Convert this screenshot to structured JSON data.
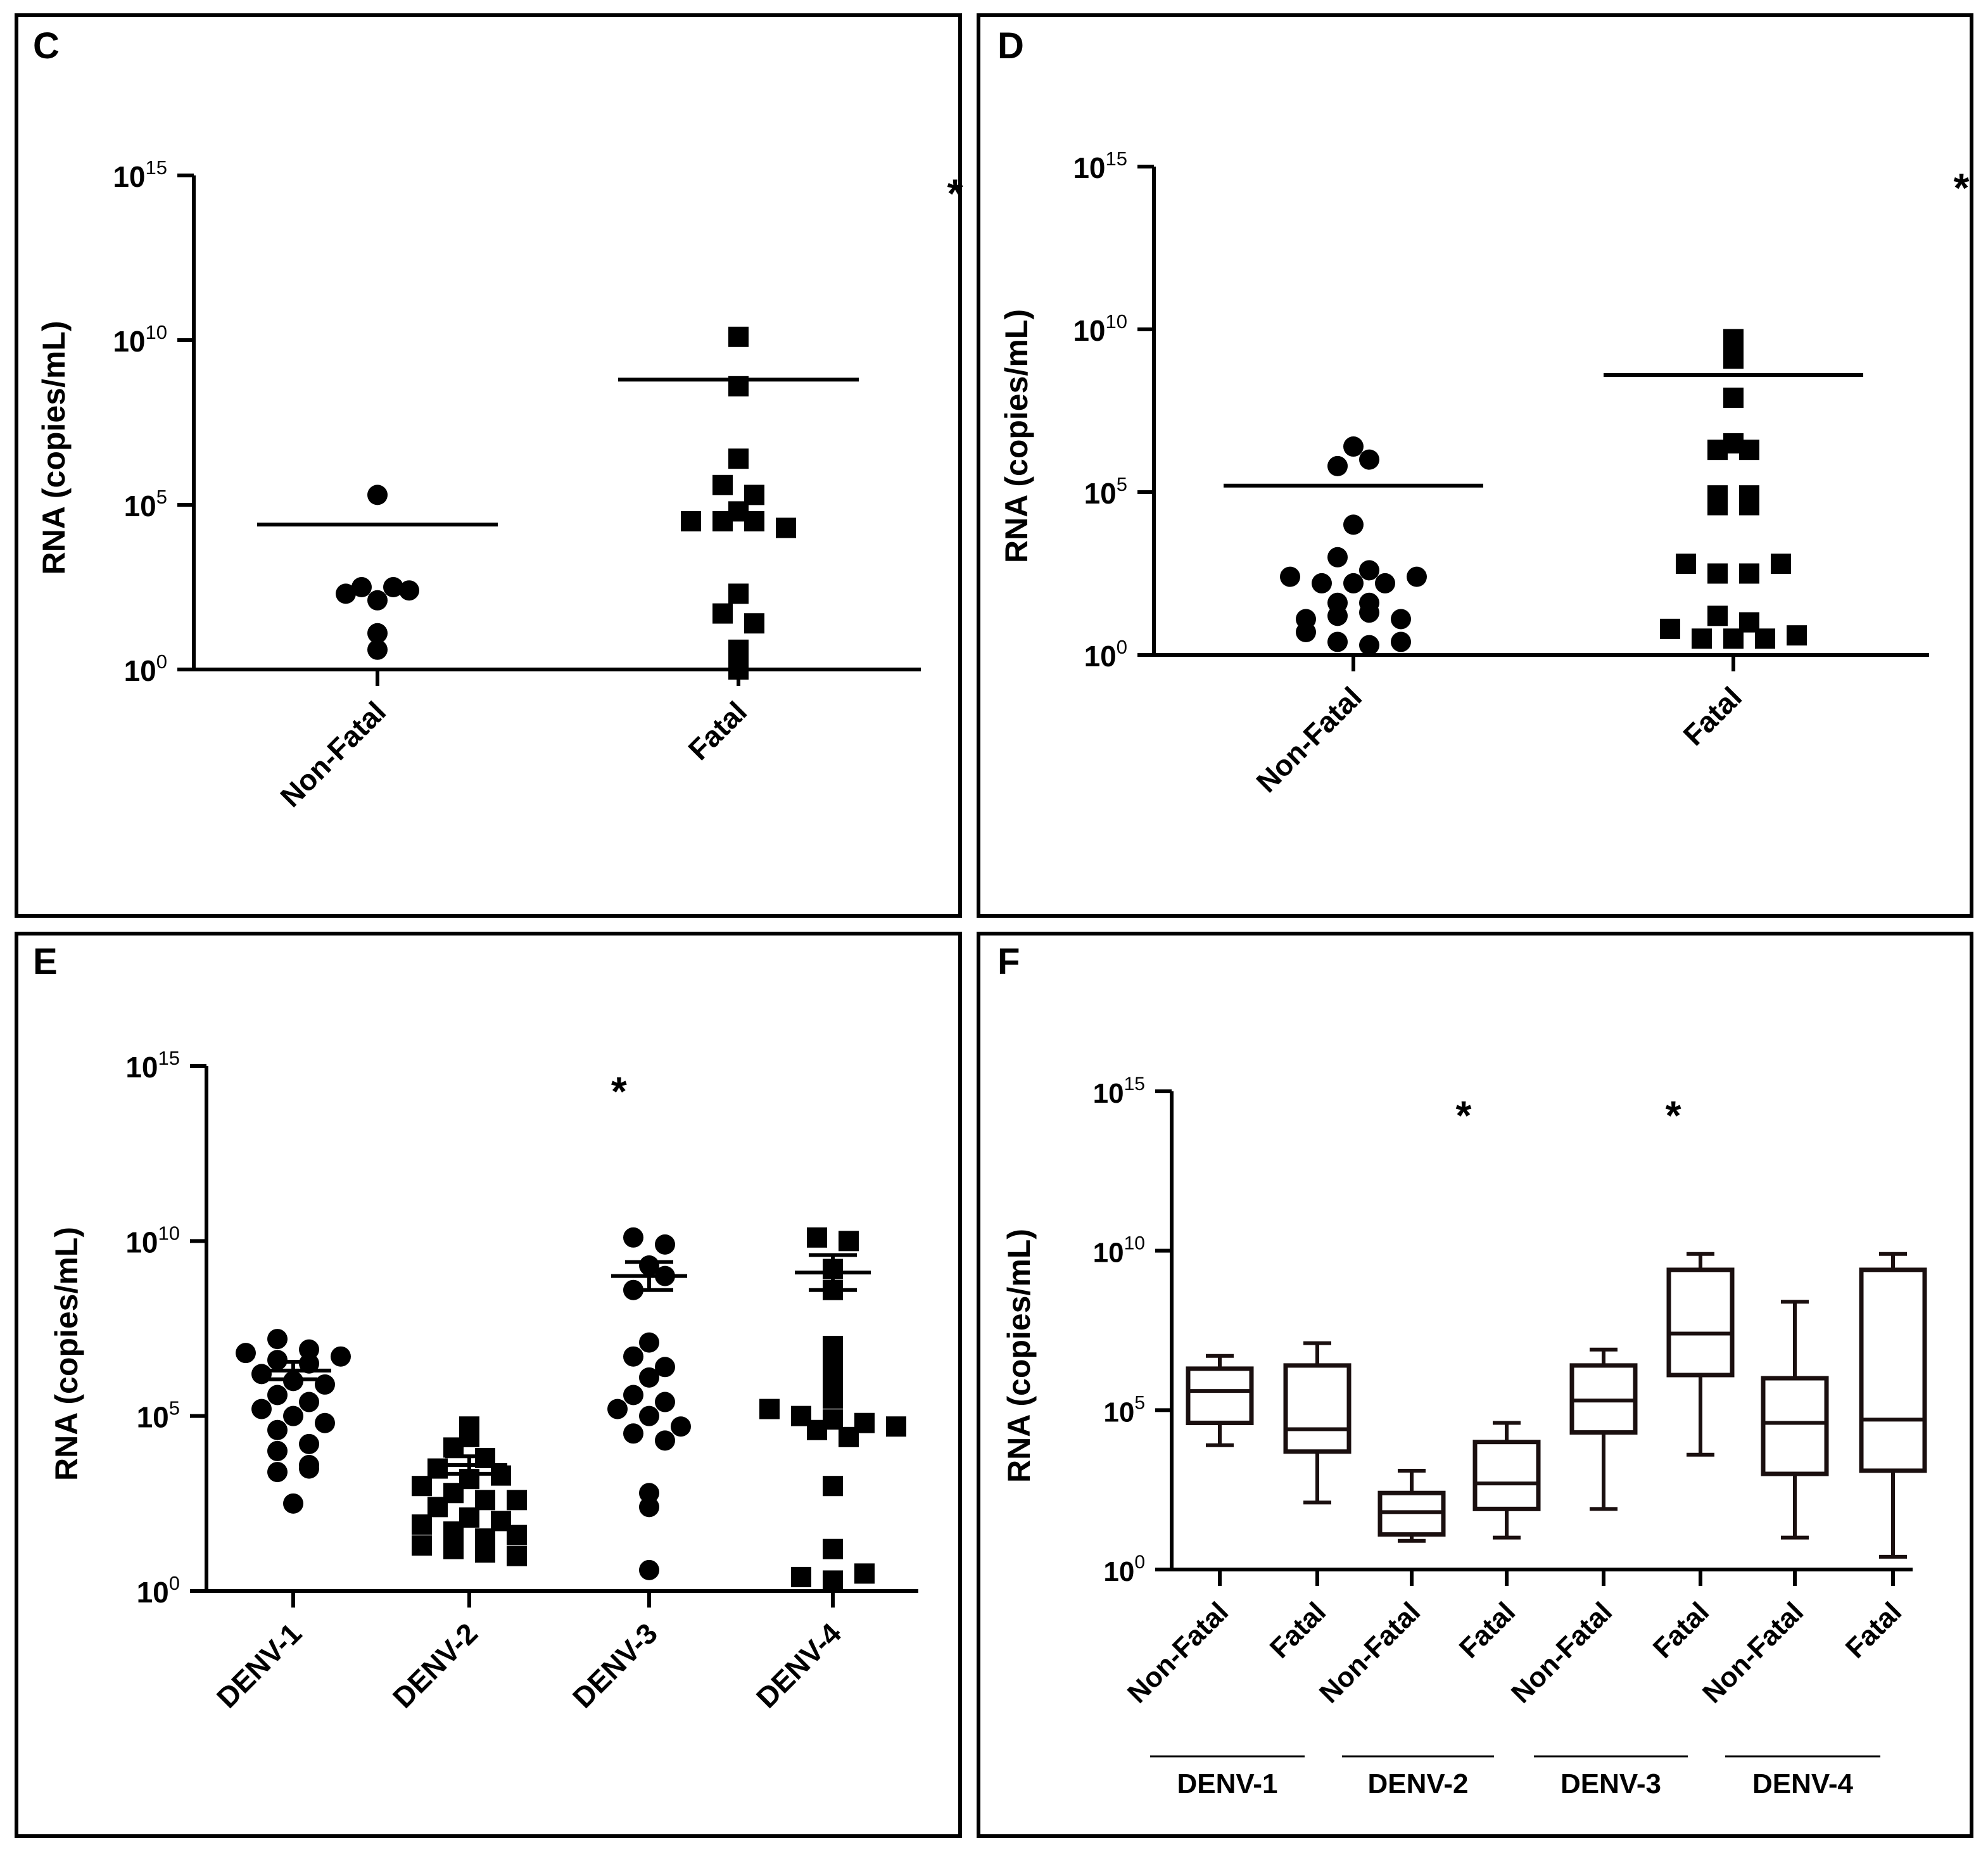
{
  "figure": {
    "panels": [
      "C",
      "D",
      "E",
      "F"
    ]
  },
  "chart_data": [
    {
      "panel": "C",
      "type": "scatter",
      "title": "",
      "ylabel": "RNA (copies/mL)",
      "yscale": "log10",
      "ylim_exponent": [
        0,
        15
      ],
      "yticks": [
        {
          "base": "10",
          "exp": "0",
          "value": 0
        },
        {
          "base": "10",
          "exp": "5",
          "value": 5
        },
        {
          "base": "10",
          "exp": "10",
          "value": 10
        },
        {
          "base": "10",
          "exp": "15",
          "value": 15
        }
      ],
      "categories": [
        "Non-Fatal",
        "Fatal"
      ],
      "annotations": [
        {
          "text": "*",
          "category_pos": 1.6,
          "y_exp": 14.8
        }
      ],
      "groups": [
        {
          "name": "Non-Fatal",
          "marker": "circle",
          "mean_log": 4.4,
          "points_log": [
            5.3,
            2.5,
            2.3,
            2.1,
            2.4,
            2.5,
            1.1,
            0.6
          ]
        },
        {
          "name": "Fatal",
          "marker": "square",
          "mean_log": 8.8,
          "points_log": [
            10.1,
            8.6,
            6.4,
            5.6,
            5.3,
            4.8,
            4.5,
            4.5,
            4.5,
            4.3,
            2.3,
            1.7,
            1.4,
            0.6,
            0.0
          ]
        }
      ]
    },
    {
      "panel": "D",
      "type": "scatter",
      "title": "",
      "ylabel": "RNA (copies/mL)",
      "yscale": "log10",
      "ylim_exponent": [
        0,
        15
      ],
      "yticks": [
        {
          "base": "10",
          "exp": "0",
          "value": 0
        },
        {
          "base": "10",
          "exp": "5",
          "value": 5
        },
        {
          "base": "10",
          "exp": "10",
          "value": 10
        },
        {
          "base": "10",
          "exp": "15",
          "value": 15
        }
      ],
      "categories": [
        "Non-Fatal",
        "Fatal"
      ],
      "annotations": [
        {
          "text": "*",
          "category_pos": 1.6,
          "y_exp": 14.7
        }
      ],
      "groups": [
        {
          "name": "Non-Fatal",
          "marker": "circle",
          "mean_log": 5.2,
          "points_log": [
            6.4,
            5.8,
            6.0,
            4.0,
            3.0,
            2.4,
            2.2,
            2.2,
            2.2,
            2.4,
            2.6,
            1.6,
            1.6,
            1.1,
            1.2,
            1.3,
            0.7,
            0.4,
            0.3,
            0.4,
            1.1
          ]
        },
        {
          "name": "Fatal",
          "marker": "square",
          "mean_log": 8.6,
          "points_log": [
            9.7,
            9.1,
            7.9,
            6.3,
            6.3,
            6.5,
            4.9,
            4.6,
            4.6,
            4.9,
            2.8,
            2.5,
            2.5,
            2.8,
            1.2,
            0.8,
            0.5,
            0.5,
            0.5,
            0.6,
            1.0
          ]
        }
      ]
    },
    {
      "panel": "E",
      "type": "scatter",
      "title": "",
      "ylabel": "RNA (copies/mL)",
      "yscale": "log10",
      "ylim_exponent": [
        0,
        15
      ],
      "yticks": [
        {
          "base": "10",
          "exp": "0",
          "value": 0
        },
        {
          "base": "10",
          "exp": "5",
          "value": 5
        },
        {
          "base": "10",
          "exp": "10",
          "value": 10
        },
        {
          "base": "10",
          "exp": "15",
          "value": 15
        }
      ],
      "categories": [
        "DENV-1",
        "DENV-2",
        "DENV-3",
        "DENV-4"
      ],
      "annotations": [
        {
          "text": "*",
          "category_pos": 1.85,
          "y_exp": 14.6
        }
      ],
      "groups": [
        {
          "name": "DENV-1",
          "marker": "circle",
          "mean_log": 6.3,
          "sem_log": 0.25,
          "points_log": [
            7.2,
            6.9,
            6.8,
            6.6,
            6.5,
            6.2,
            6.0,
            5.9,
            5.6,
            5.4,
            5.2,
            5.0,
            4.8,
            4.6,
            4.2,
            4.0,
            3.6,
            3.4,
            3.5,
            2.5,
            6.7
          ]
        },
        {
          "name": "DENV-2",
          "marker": "square",
          "mean_log": 3.6,
          "sem_log": 0.25,
          "points_log": [
            4.7,
            4.4,
            4.1,
            3.8,
            3.5,
            3.2,
            3.0,
            2.8,
            2.6,
            2.4,
            2.1,
            2.0,
            1.9,
            1.7,
            1.5,
            1.3,
            1.2,
            1.1,
            1.0,
            2.6,
            3.3,
            1.6
          ]
        },
        {
          "name": "DENV-3",
          "marker": "circle",
          "mean_log": 9.0,
          "sem_log": 0.4,
          "points_log": [
            10.1,
            9.9,
            9.3,
            8.6,
            7.1,
            6.7,
            6.4,
            6.1,
            5.6,
            5.4,
            5.2,
            5.0,
            4.7,
            4.5,
            4.3,
            2.8,
            2.4,
            0.6,
            9.0
          ]
        },
        {
          "name": "DENV-4",
          "marker": "square",
          "mean_log": 9.1,
          "sem_log": 0.5,
          "points_log": [
            10.1,
            10.0,
            9.2,
            8.6,
            7.0,
            6.5,
            6.0,
            5.5,
            5.2,
            5.0,
            4.9,
            4.8,
            4.6,
            4.4,
            3.0,
            1.2,
            0.4,
            0.3,
            0.5,
            4.7
          ]
        }
      ]
    },
    {
      "panel": "F",
      "type": "box",
      "title": "",
      "ylabel": "RNA (copies/mL)",
      "yscale": "log10",
      "ylim_exponent": [
        0,
        15
      ],
      "yticks": [
        {
          "base": "10",
          "exp": "0",
          "value": 0
        },
        {
          "base": "10",
          "exp": "5",
          "value": 5
        },
        {
          "base": "10",
          "exp": "10",
          "value": 10
        },
        {
          "base": "10",
          "exp": "15",
          "value": 15
        }
      ],
      "categories": [
        "Non-Fatal",
        "Fatal",
        "Non-Fatal",
        "Fatal",
        "Non-Fatal",
        "Fatal",
        "Non-Fatal",
        "Fatal"
      ],
      "serotype_groups": [
        {
          "label": "DENV-1",
          "members": [
            0,
            1
          ]
        },
        {
          "label": "DENV-2",
          "members": [
            2,
            3
          ]
        },
        {
          "label": "DENV-3",
          "members": [
            4,
            5
          ]
        },
        {
          "label": "DENV-4",
          "members": [
            6,
            7
          ]
        }
      ],
      "annotations": [
        {
          "text": "*",
          "category_pos": 2.5,
          "y_exp": 14.6
        },
        {
          "text": "*",
          "category_pos": 4.65,
          "y_exp": 14.6
        }
      ],
      "boxes": [
        {
          "min": 3.9,
          "q1": 4.6,
          "median": 5.6,
          "q3": 6.3,
          "max": 6.7
        },
        {
          "min": 2.1,
          "q1": 3.7,
          "median": 4.4,
          "q3": 6.4,
          "max": 7.1
        },
        {
          "min": 0.9,
          "q1": 1.1,
          "median": 1.8,
          "q3": 2.4,
          "max": 3.1
        },
        {
          "min": 1.0,
          "q1": 1.9,
          "median": 2.7,
          "q3": 4.0,
          "max": 4.6
        },
        {
          "min": 1.9,
          "q1": 4.3,
          "median": 5.3,
          "q3": 6.4,
          "max": 6.9
        },
        {
          "min": 3.6,
          "q1": 6.1,
          "median": 7.4,
          "q3": 9.4,
          "max": 9.9
        },
        {
          "min": 1.0,
          "q1": 3.0,
          "median": 4.6,
          "q3": 6.0,
          "max": 8.4
        },
        {
          "min": 0.4,
          "q1": 3.1,
          "median": 4.7,
          "q3": 9.4,
          "max": 9.9
        }
      ]
    }
  ]
}
